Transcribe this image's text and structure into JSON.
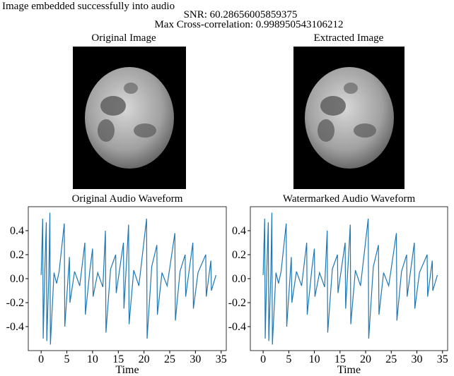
{
  "header": {
    "lines": [
      "Image embedded successfully into audio",
      "SNR: 60.28656005859375",
      "Max Cross-correlation: 0.998950543106212"
    ]
  },
  "images": [
    {
      "title": "Original Image"
    },
    {
      "title": "Extracted Image"
    }
  ],
  "chart_data": [
    {
      "type": "line",
      "title": "Original Audio Waveform",
      "xlabel": "Time",
      "color": "#1f77b4",
      "x": [
        0,
        0.3,
        0.4,
        0.7,
        1.0,
        1.1,
        1.5,
        1.7,
        1.8,
        2.5,
        3,
        3.5,
        4.5,
        4.6,
        5.5,
        5.6,
        6.5,
        7.5,
        8.5,
        8.6,
        9.5,
        10,
        10.1,
        11,
        12,
        12.5,
        12.6,
        13.5,
        14.5,
        14.6,
        16,
        16.1,
        17,
        17.1,
        18,
        19,
        20.5,
        20.6,
        21.5,
        22.5,
        22.6,
        23.5,
        24.5,
        26,
        26.1,
        27,
        28,
        28.1,
        29.5,
        29.6,
        30.5,
        32,
        32.1,
        33,
        33.1,
        34
      ],
      "values": [
        0.03,
        0.5,
        -0.5,
        0.05,
        0.47,
        -0.52,
        0.04,
        0.55,
        -0.55,
        0.05,
        -0.04,
        0.06,
        0.46,
        -0.4,
        0.18,
        -0.2,
        0.06,
        -0.06,
        0.3,
        -0.3,
        0.08,
        0.25,
        -0.15,
        0.05,
        -0.07,
        0.4,
        -0.45,
        0.08,
        0.2,
        -0.12,
        0.3,
        -0.25,
        0.45,
        -0.38,
        0.07,
        -0.06,
        0.5,
        -0.5,
        0.1,
        0.28,
        -0.3,
        0.05,
        -0.06,
        0.38,
        -0.35,
        0.06,
        0.2,
        -0.15,
        0.3,
        -0.25,
        0.05,
        0.2,
        -0.15,
        0.15,
        -0.1,
        0.03
      ],
      "xlim": [
        -2.5,
        36
      ],
      "ylim": [
        -0.6,
        0.6
      ],
      "xticks": [
        0,
        5,
        10,
        15,
        20,
        25,
        30,
        35
      ],
      "yticks": [
        -0.4,
        -0.2,
        {
          "value": 0,
          "label": "0.0"
        },
        0.2,
        0.4
      ],
      "grid": false
    },
    {
      "type": "line",
      "title": "Watermarked Audio Waveform",
      "xlabel": "Time",
      "color": "#1f77b4",
      "x": [
        0,
        0.3,
        0.4,
        0.7,
        1.0,
        1.1,
        1.5,
        1.7,
        1.8,
        2.5,
        3,
        3.5,
        4.5,
        4.6,
        5.5,
        5.6,
        6.5,
        7.5,
        8.5,
        8.6,
        9.5,
        10,
        10.1,
        11,
        12,
        12.5,
        12.6,
        13.5,
        14.5,
        14.6,
        16,
        16.1,
        17,
        17.1,
        18,
        19,
        20.5,
        20.6,
        21.5,
        22.5,
        22.6,
        23.5,
        24.5,
        26,
        26.1,
        27,
        28,
        28.1,
        29.5,
        29.6,
        30.5,
        32,
        32.1,
        33,
        33.1,
        34
      ],
      "values": [
        0.03,
        0.5,
        -0.5,
        0.05,
        0.47,
        -0.52,
        0.04,
        0.55,
        -0.55,
        0.05,
        -0.04,
        0.06,
        0.46,
        -0.4,
        0.18,
        -0.2,
        0.06,
        -0.06,
        0.3,
        -0.3,
        0.08,
        0.25,
        -0.15,
        0.05,
        -0.07,
        0.4,
        -0.45,
        0.08,
        0.2,
        -0.12,
        0.3,
        -0.25,
        0.45,
        -0.38,
        0.07,
        -0.06,
        0.5,
        -0.5,
        0.1,
        0.28,
        -0.3,
        0.05,
        -0.06,
        0.38,
        -0.35,
        0.06,
        0.2,
        -0.15,
        0.3,
        -0.25,
        0.05,
        0.2,
        -0.15,
        0.15,
        -0.1,
        0.03
      ],
      "xlim": [
        -2.5,
        36
      ],
      "ylim": [
        -0.6,
        0.6
      ],
      "xticks": [
        0,
        5,
        10,
        15,
        20,
        25,
        30,
        35
      ],
      "yticks": [
        -0.4,
        -0.2,
        {
          "value": 0,
          "label": "0.0"
        },
        0.2,
        0.4
      ],
      "grid": false
    }
  ]
}
